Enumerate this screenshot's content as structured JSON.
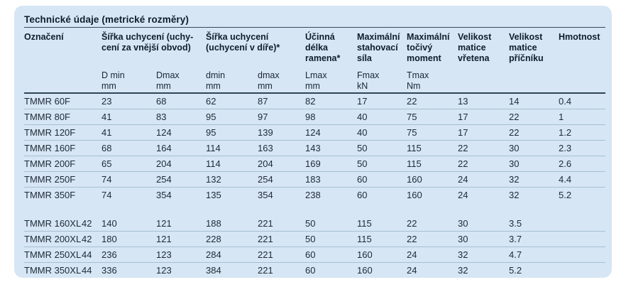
{
  "title": "Technické údaje (metrické rozměry)",
  "colors": {
    "panel_bg": "#d6e6f4",
    "text": "#1e2a36",
    "heading_text": "#0e1e2c",
    "rule_dark": "#2e4558",
    "rule_light": "#a6bfd3"
  },
  "table": {
    "headers": [
      {
        "lines": [
          "Označení"
        ]
      },
      {
        "lines": [
          "Šířka uchycení (uchy-",
          "cení za vnější obvod)"
        ]
      },
      {
        "lines": [
          "Šířka uchycení",
          "(uchycení v díře)*"
        ]
      },
      {
        "lines": [
          "Účinná",
          "délka",
          "ramena*"
        ]
      },
      {
        "lines": [
          "Maximální",
          "stahovací",
          "síla"
        ]
      },
      {
        "lines": [
          "Maximální",
          "točivý",
          "moment"
        ]
      },
      {
        "lines": [
          "Velikost",
          "matice",
          "vřetena"
        ]
      },
      {
        "lines": [
          "Velikost",
          "matice",
          "příčníku"
        ]
      },
      {
        "lines": [
          "Hmotnost"
        ]
      }
    ],
    "subheaders": [
      {
        "lines": [
          "D min",
          "mm"
        ]
      },
      {
        "lines": [
          "Dmax",
          "mm"
        ]
      },
      {
        "lines": [
          "dmin",
          "mm"
        ]
      },
      {
        "lines": [
          "dmax",
          "mm"
        ]
      },
      {
        "lines": [
          "Lmax",
          "mm"
        ]
      },
      {
        "lines": [
          "Fmax",
          "kN"
        ]
      },
      {
        "lines": [
          "Tmax",
          "Nm"
        ]
      }
    ],
    "rows": [
      {
        "model": "TMMR 60F",
        "extra": "",
        "values": [
          "23",
          "68",
          "62",
          "87",
          "82",
          "17",
          "22",
          "13",
          "14",
          "0.4"
        ],
        "rule": true
      },
      {
        "model": "TMMR 80F",
        "extra": "",
        "values": [
          "41",
          "83",
          "95",
          "97",
          "98",
          "40",
          "75",
          "17",
          "22",
          "1"
        ],
        "rule": true
      },
      {
        "model": "TMMR 120F",
        "extra": "",
        "values": [
          "41",
          "124",
          "95",
          "139",
          "124",
          "40",
          "75",
          "17",
          "22",
          "1.2"
        ],
        "rule": true
      },
      {
        "model": "TMMR 160F",
        "extra": "",
        "values": [
          "68",
          "164",
          "114",
          "163",
          "143",
          "50",
          "115",
          "22",
          "30",
          "2.3"
        ],
        "rule": true
      },
      {
        "model": "TMMR 200F",
        "extra": "",
        "values": [
          "65",
          "204",
          "114",
          "204",
          "169",
          "50",
          "115",
          "22",
          "30",
          "2.6"
        ],
        "rule": true
      },
      {
        "model": "TMMR 250F",
        "extra": "",
        "values": [
          "74",
          "254",
          "132",
          "254",
          "183",
          "60",
          "160",
          "24",
          "32",
          "4.4"
        ],
        "rule": true
      },
      {
        "model": "TMMR 350F",
        "extra": "",
        "values": [
          "74",
          "354",
          "135",
          "354",
          "238",
          "60",
          "160",
          "24",
          "32",
          "5.2"
        ],
        "rule": false
      },
      {
        "gap": true
      },
      {
        "model": "TMMR 160XL",
        "extra": "42",
        "values": [
          "140",
          "121",
          "188",
          "221",
          "50",
          "115",
          "22",
          "30",
          "3.5",
          ""
        ],
        "rule": true
      },
      {
        "model": "TMMR 200XL",
        "extra": "42",
        "values": [
          "180",
          "121",
          "228",
          "221",
          "50",
          "115",
          "22",
          "30",
          "3.7",
          ""
        ],
        "rule": true
      },
      {
        "model": "TMMR 250XL",
        "extra": "44",
        "values": [
          "236",
          "123",
          "284",
          "221",
          "60",
          "160",
          "24",
          "32",
          "4.7",
          ""
        ],
        "rule": true
      },
      {
        "model": "TMMR 350XL",
        "extra": "44",
        "values": [
          "336",
          "123",
          "384",
          "221",
          "60",
          "160",
          "24",
          "32",
          "5.2",
          ""
        ],
        "rule": false
      }
    ]
  }
}
